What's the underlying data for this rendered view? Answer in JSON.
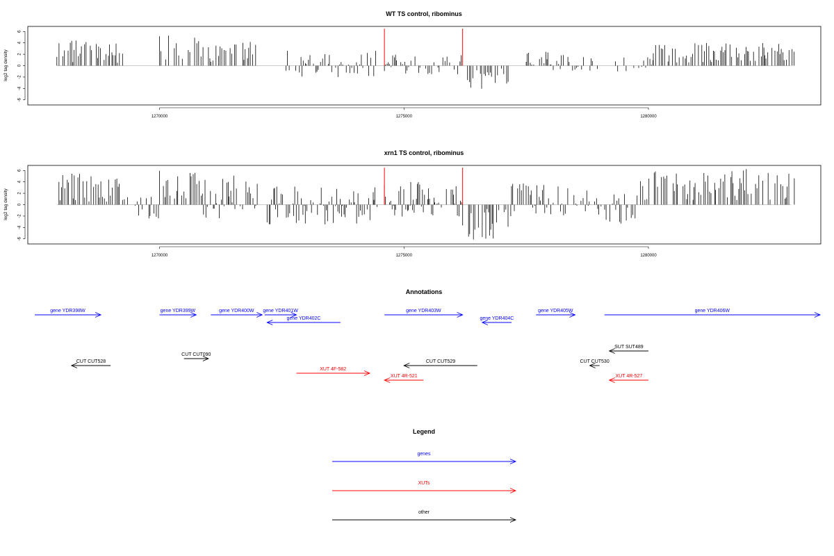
{
  "chart_data": [
    {
      "type": "bar",
      "title": "WT TS control, ribominus",
      "ylabel": "log2 tag density",
      "xlim": [
        1267800,
        1283500
      ],
      "ylim": [
        -7,
        7
      ],
      "xticks": [
        1270000,
        1275000,
        1280000
      ],
      "xtick_labels": [
        "1270000",
        "1275000",
        "1280000"
      ],
      "yticks": [
        -6,
        -4,
        -2,
        0,
        2,
        4,
        6
      ],
      "ytick_labels": [
        "-6",
        "-4",
        "-2",
        "0",
        "2",
        "4",
        "6"
      ],
      "grid": false,
      "bar_color": "#000000",
      "marker_color": "#ff0000",
      "markers": [
        1274600,
        1276200
      ],
      "segments": [
        {
          "start": 1267900,
          "end": 1269250,
          "min": 0.5,
          "max": 4.8
        },
        {
          "start": 1270000,
          "end": 1270900,
          "min": 1.0,
          "max": 5.5
        },
        {
          "start": 1271000,
          "end": 1272000,
          "min": 0.5,
          "max": 4.2
        },
        {
          "start": 1272500,
          "end": 1274500,
          "min": -2.0,
          "max": 2.8
        },
        {
          "start": 1274600,
          "end": 1276200,
          "min": -1.5,
          "max": 2.0
        },
        {
          "start": 1276300,
          "end": 1277200,
          "min": -4.2,
          "max": -0.5
        },
        {
          "start": 1277500,
          "end": 1279000,
          "min": -1.0,
          "max": 2.5
        },
        {
          "start": 1279300,
          "end": 1280100,
          "min": -1.5,
          "max": 1.5
        },
        {
          "start": 1280100,
          "end": 1283000,
          "min": 0.5,
          "max": 4.0
        }
      ]
    },
    {
      "type": "bar",
      "title": "xrn1 TS control, ribominus",
      "ylabel": "log2 tag density",
      "xlim": [
        1267800,
        1283500
      ],
      "ylim": [
        -7,
        7
      ],
      "xticks": [
        1270000,
        1275000,
        1280000
      ],
      "xtick_labels": [
        "1270000",
        "1275000",
        "1280000"
      ],
      "yticks": [
        -6,
        -4,
        -2,
        0,
        2,
        4,
        6
      ],
      "ytick_labels": [
        "-6",
        "-4",
        "-2",
        "0",
        "2",
        "4",
        "6"
      ],
      "grid": false,
      "bar_color": "#000000",
      "marker_color": "#ff0000",
      "markers": [
        1274600,
        1276200
      ],
      "segments": [
        {
          "start": 1267900,
          "end": 1269300,
          "min": 0.5,
          "max": 5.5
        },
        {
          "start": 1269300,
          "end": 1270000,
          "min": -3.0,
          "max": 1.5
        },
        {
          "start": 1270000,
          "end": 1270900,
          "min": 0.8,
          "max": 6.0
        },
        {
          "start": 1270900,
          "end": 1272000,
          "min": -2.5,
          "max": 5.5
        },
        {
          "start": 1272200,
          "end": 1274500,
          "min": -3.5,
          "max": 3.2
        },
        {
          "start": 1274600,
          "end": 1276200,
          "min": -2.5,
          "max": 4.5
        },
        {
          "start": 1276200,
          "end": 1277200,
          "min": -6.5,
          "max": -0.5
        },
        {
          "start": 1277200,
          "end": 1279000,
          "min": -2.0,
          "max": 4.0
        },
        {
          "start": 1279000,
          "end": 1279800,
          "min": -3.8,
          "max": 2.0
        },
        {
          "start": 1279800,
          "end": 1283000,
          "min": 0.8,
          "max": 6.5
        }
      ]
    }
  ],
  "annotations": {
    "title": "Annotations",
    "genes": [
      {
        "label": "gene YDR398W",
        "x1": 1266600,
        "x2": 1268800,
        "dir": "right",
        "row": 1
      },
      {
        "label": "gene YDR399W",
        "x1": 1270000,
        "x2": 1270750,
        "dir": "right",
        "row": 1
      },
      {
        "label": "gene YDR400W",
        "x1": 1271050,
        "x2": 1272100,
        "dir": "right",
        "row": 1
      },
      {
        "label": "gene YDR401W",
        "x1": 1272150,
        "x2": 1272800,
        "dir": "right",
        "row": 1
      },
      {
        "label": "gene YDR402C",
        "x1": 1272200,
        "x2": 1273700,
        "dir": "left",
        "row": 2
      },
      {
        "label": "gene YDR403W",
        "x1": 1274600,
        "x2": 1276200,
        "dir": "right",
        "row": 1
      },
      {
        "label": "gene YDR404C",
        "x1": 1276600,
        "x2": 1277200,
        "dir": "left",
        "row": 2
      },
      {
        "label": "gene YDR405W",
        "x1": 1277700,
        "x2": 1278500,
        "dir": "right",
        "row": 1
      },
      {
        "label": "gene YDR406W",
        "x1": 1279100,
        "x2": 1284300,
        "dir": "right",
        "row": 1
      }
    ],
    "other": [
      {
        "label": "SUT SUT489",
        "x1": 1279200,
        "x2": 1280000,
        "dir": "left",
        "row": 1
      },
      {
        "label": "CUT CUT528",
        "x1": 1268200,
        "x2": 1269000,
        "dir": "left",
        "row": 2
      },
      {
        "label": "CUT CUT090",
        "x1": 1270500,
        "x2": 1271000,
        "dir": "right",
        "row": 3
      },
      {
        "label": "CUT CUT529",
        "x1": 1275000,
        "x2": 1276500,
        "dir": "left",
        "row": 2
      },
      {
        "label": "CUT CUT530",
        "x1": 1278800,
        "x2": 1279000,
        "dir": "left",
        "row": 4
      }
    ],
    "xuts": [
      {
        "label": "XUT 4F-582",
        "x1": 1272800,
        "x2": 1274300,
        "dir": "right",
        "row": 1
      },
      {
        "label": "XUT 4R-521",
        "x1": 1274600,
        "x2": 1275400,
        "dir": "left",
        "row": 2
      },
      {
        "label": "XUT 4R-527",
        "x1": 1279200,
        "x2": 1280000,
        "dir": "left",
        "row": 2
      }
    ]
  },
  "legend": {
    "title": "Legend",
    "items": [
      {
        "label": "genes",
        "color": "#0000ff"
      },
      {
        "label": "XUTs",
        "color": "#ff0000"
      },
      {
        "label": "other",
        "color": "#000000"
      }
    ]
  },
  "colors": {
    "genes": "#0000ff",
    "xuts": "#ff0000",
    "other": "#000000"
  }
}
